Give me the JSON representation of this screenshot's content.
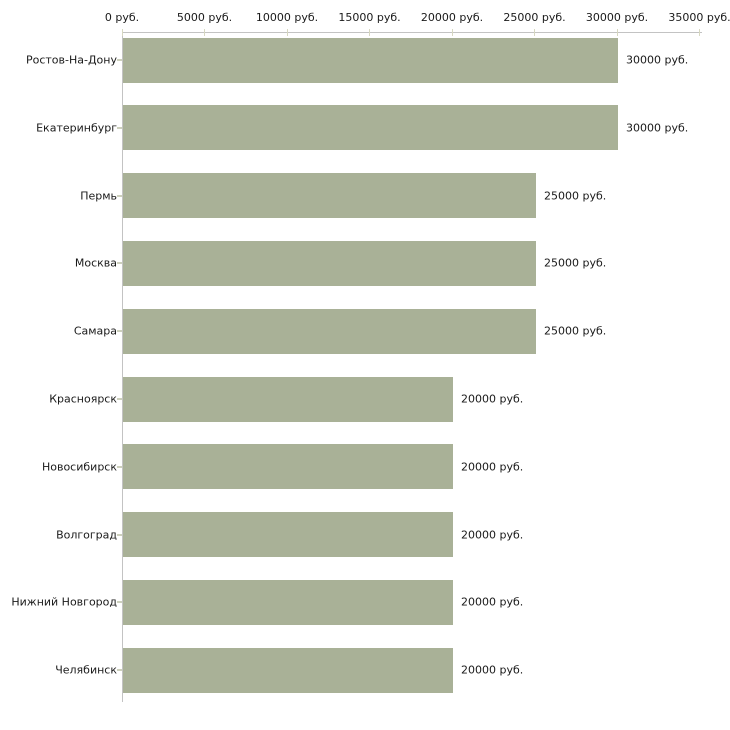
{
  "chart_data": {
    "type": "bar",
    "orientation": "horizontal",
    "value_axis_position": "top",
    "grid": false,
    "legend": "none",
    "unit": "руб.",
    "categories": [
      "Ростов-На-Дону",
      "Екатеринбург",
      "Пермь",
      "Москва",
      "Самара",
      "Красноярск",
      "Новосибирск",
      "Волгоград",
      "Нижний Новгород",
      "Челябинск"
    ],
    "values": [
      30000,
      30000,
      25000,
      25000,
      25000,
      20000,
      20000,
      20000,
      20000,
      20000
    ],
    "value_labels": [
      "30000 руб.",
      "30000 руб.",
      "25000 руб.",
      "25000 руб.",
      "25000 руб.",
      "20000 руб.",
      "20000 руб.",
      "20000 руб.",
      "20000 руб.",
      "20000 руб."
    ],
    "x_ticks": [
      0,
      5000,
      10000,
      15000,
      20000,
      25000,
      30000,
      35000
    ],
    "x_tick_labels": [
      "0 руб.",
      "5000 руб.",
      "10000 руб.",
      "15000 руб.",
      "20000 руб.",
      "25000 руб.",
      "30000 руб.",
      "35000 руб."
    ],
    "xlim": [
      0,
      35000
    ],
    "colors": {
      "bar": "#a9b197",
      "axis_line": "#c3c3c3",
      "axis_tick": "#d7d8c1",
      "category_tick": "#cdd0bd",
      "text": "#1a1a1a",
      "background": "#ffffff"
    }
  }
}
